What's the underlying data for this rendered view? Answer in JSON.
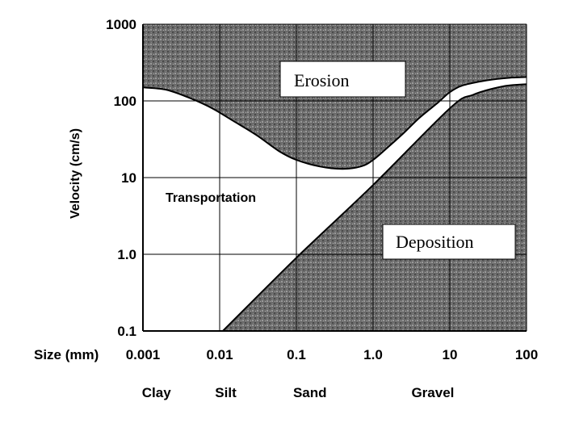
{
  "chart_data": {
    "type": "area",
    "title": "",
    "xlabel": "Size (mm)",
    "ylabel": "Velocity (cm/s)",
    "x_scale": "log",
    "y_scale": "log",
    "xlim": [
      0.001,
      100
    ],
    "ylim": [
      0.1,
      1000
    ],
    "grid": true,
    "x_ticks": [
      "0.001",
      "0.01",
      "0.1",
      "1.0",
      "10",
      "100"
    ],
    "x_tick_values": [
      0.001,
      0.01,
      0.1,
      1.0,
      10,
      100
    ],
    "y_ticks": [
      "0.1",
      "1.0",
      "10",
      "100",
      "1000"
    ],
    "y_tick_values": [
      0.1,
      1.0,
      10,
      100,
      1000
    ],
    "size_classes": [
      {
        "label": "Clay",
        "x": 0.0015
      },
      {
        "label": "Silt",
        "x": 0.012
      },
      {
        "label": "Sand",
        "x": 0.15
      },
      {
        "label": "Gravel",
        "x": 6
      }
    ],
    "series": [
      {
        "name": "Erosion",
        "x": [
          0.001,
          0.002,
          0.004,
          0.008,
          0.015,
          0.03,
          0.06,
          0.1,
          0.2,
          0.4,
          0.7,
          1.0,
          1.5,
          2.5,
          4,
          7,
          10,
          15,
          30,
          60,
          100
        ],
        "y": [
          150,
          140,
          110,
          80,
          55,
          36,
          22,
          17,
          14,
          13,
          14,
          17,
          24,
          38,
          60,
          95,
          130,
          160,
          185,
          200,
          205
        ]
      },
      {
        "name": "Deposition",
        "x": [
          0.011,
          0.1,
          1.0,
          10,
          20,
          50,
          100
        ],
        "y": [
          0.1,
          0.9,
          8,
          80,
          120,
          155,
          165
        ]
      }
    ],
    "regions": [
      {
        "label": "Erosion",
        "boxed": true
      },
      {
        "label": "Transportation",
        "boxed": false
      },
      {
        "label": "Deposition",
        "boxed": true
      }
    ]
  }
}
